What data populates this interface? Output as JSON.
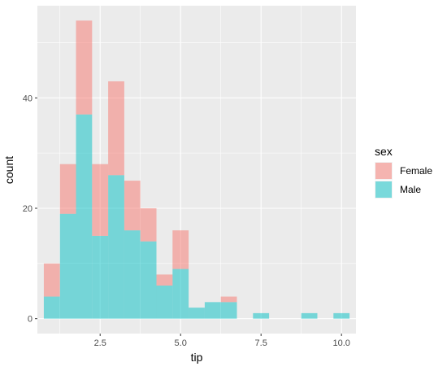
{
  "chart_data": {
    "type": "bar",
    "stacked": true,
    "histogram": true,
    "xlabel": "tip",
    "ylabel": "count",
    "xlim": [
      0.55,
      10.45
    ],
    "ylim": [
      -2.7,
      56.7
    ],
    "xticks": [
      2.5,
      5.0,
      7.5,
      10.0
    ],
    "xtick_labels": [
      "2.5",
      "5.0",
      "7.5",
      "10.0"
    ],
    "yticks": [
      0,
      20,
      40
    ],
    "ytick_labels": [
      "0",
      "20",
      "40"
    ],
    "bins": [
      [
        0.75,
        1.25
      ],
      [
        1.25,
        1.75
      ],
      [
        1.75,
        2.25
      ],
      [
        2.25,
        2.75
      ],
      [
        2.75,
        3.25
      ],
      [
        3.25,
        3.75
      ],
      [
        3.75,
        4.25
      ],
      [
        4.25,
        4.75
      ],
      [
        4.75,
        5.25
      ],
      [
        5.25,
        5.75
      ],
      [
        5.75,
        6.25
      ],
      [
        6.25,
        6.75
      ],
      [
        6.75,
        7.25
      ],
      [
        7.25,
        7.75
      ],
      [
        7.75,
        8.25
      ],
      [
        8.25,
        8.75
      ],
      [
        8.75,
        9.25
      ],
      [
        9.25,
        9.75
      ],
      [
        9.75,
        10.25
      ]
    ],
    "series": [
      {
        "name": "Male",
        "color": "#00BFC4",
        "values": [
          4,
          19,
          37,
          15,
          26,
          16,
          14,
          6,
          9,
          2,
          3,
          3,
          0,
          1,
          0,
          0,
          1,
          0,
          1
        ]
      },
      {
        "name": "Female",
        "color": "#F8766D",
        "values": [
          6,
          9,
          17,
          13,
          17,
          9,
          6,
          2,
          7,
          0,
          0,
          1,
          0,
          0,
          0,
          0,
          0,
          0,
          0
        ]
      }
    ],
    "fill_opacity": 0.5,
    "legend": {
      "title": "sex",
      "entries": [
        "Female",
        "Male"
      ],
      "position": "right"
    },
    "grid": true,
    "panel_background": "#EBEBEB",
    "grid_color": "#FFFFFF"
  }
}
